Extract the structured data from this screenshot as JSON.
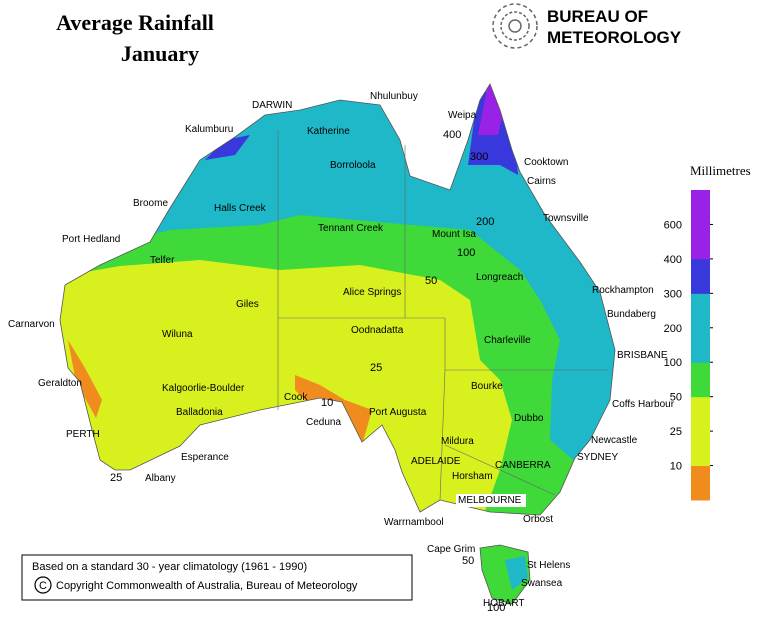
{
  "map": {
    "title": "Average Rainfall",
    "subtitle": "January",
    "logo_lines": [
      "BUREAU OF",
      "METEOROLOGY"
    ],
    "legend": {
      "title": "Millimetres",
      "ticks": [
        10,
        25,
        50,
        100,
        200,
        300,
        400,
        600
      ],
      "colors": [
        "#f08c1e",
        "#d8f01e",
        "#d8f01e",
        "#3fd93a",
        "#1fb8c8",
        "#1fb8c8",
        "#3838dc",
        "#9a22e6",
        "#9a22e6"
      ]
    },
    "places": [
      "DARWIN",
      "Nhulunbuy",
      "Weipa",
      "Kalumburu",
      "Katherine",
      "Borroloola",
      "Cooktown",
      "Cairns",
      "Broome",
      "Halls Creek",
      "Townsville",
      "Tennant Creek",
      "Mount Isa",
      "Port Hedland",
      "Telfer",
      "Longreach",
      "Rockhampton",
      "Giles",
      "Alice Springs",
      "Bundaberg",
      "Carnarvon",
      "Wiluna",
      "Oodnadatta",
      "Charleville",
      "BRISBANE",
      "Geraldton",
      "Kalgoorlie-Boulder",
      "Bourke",
      "Coffs Harbour",
      "Cook",
      "Balladonia",
      "Ceduna",
      "Port Augusta",
      "Dubbo",
      "PERTH",
      "Newcastle",
      "Mildura",
      "ADELAIDE",
      "CANBERRA",
      "SYDNEY",
      "Esperance",
      "Horsham",
      "Albany",
      "MELBOURNE",
      "Warrnambool",
      "Orbost",
      "Cape Grim",
      "St Helens",
      "Swansea",
      "HOBART"
    ],
    "contour_labels": [
      400,
      300,
      200,
      100,
      50,
      25,
      10,
      25,
      50,
      100
    ],
    "footer": {
      "note": "Based on a standard 30 - year climatology (1961 - 1990)",
      "copyright_symbol": "C",
      "copyright": "Copyright Commonwealth of Australia, Bureau of Meteorology"
    }
  }
}
